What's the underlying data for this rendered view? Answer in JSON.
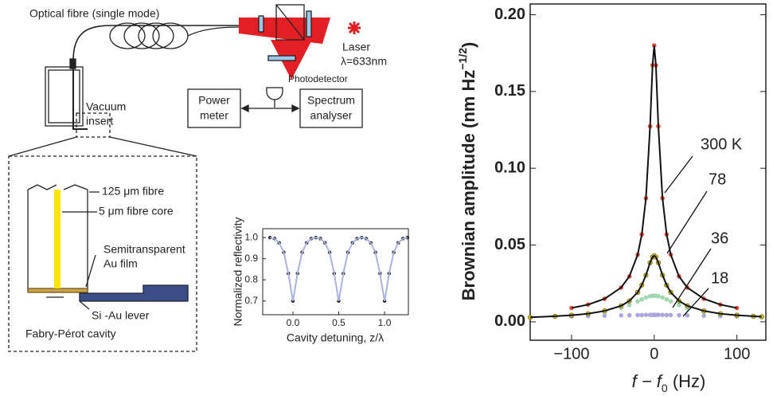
{
  "diagram": {
    "labels": [
      "Optical fibre (single mode)",
      "Laser",
      "λ=633nm",
      "Vacuum",
      "insert",
      "Photodetector",
      "Power",
      "meter",
      "Spectrum",
      "analyser",
      "125 μm fibre",
      "5 μm fibre core",
      "Semitransparent",
      "Au film",
      "Si -Au lever",
      "Fabry-Pérot cavity"
    ]
  },
  "chart_data": [
    {
      "type": "scatter",
      "xlabel": "Cavity detuning, z/λ",
      "ylabel": "Normalized reflectivity",
      "x": [
        -0.25,
        -0.2,
        -0.15,
        -0.1,
        -0.05,
        0,
        0.05,
        0.1,
        0.15,
        0.2,
        0.25,
        0.3,
        0.35,
        0.4,
        0.45,
        0.5,
        0.55,
        0.6,
        0.65,
        0.7,
        0.75,
        0.8,
        0.85,
        0.9,
        0.95,
        1,
        1.05,
        1.1,
        1.15,
        1.2,
        1.25
      ],
      "values": [
        1.0,
        0.995,
        0.975,
        0.93,
        0.83,
        0.7,
        0.83,
        0.93,
        0.975,
        0.995,
        1.0,
        0.995,
        0.975,
        0.93,
        0.83,
        0.7,
        0.83,
        0.93,
        0.975,
        0.995,
        1.0,
        0.995,
        0.975,
        0.93,
        0.83,
        0.7,
        0.83,
        0.93,
        0.975,
        0.995,
        1.0
      ],
      "color": "#1a1a1a",
      "line_color": "#aab2e0",
      "xlim": [
        -0.33,
        1.26
      ],
      "ylim": [
        0.635,
        1.042
      ],
      "xticks": [
        {
          "value": 0,
          "label": "0.0"
        },
        {
          "value": 0.5,
          "label": "0.5"
        },
        {
          "value": 1,
          "label": "1.0"
        }
      ],
      "yticks": [
        0.7,
        0.8,
        0.9,
        {
          "value": 1,
          "label": "1.0"
        }
      ]
    },
    {
      "type": "scatter",
      "xlabel": [
        "f − f",
        "0",
        " (Hz)"
      ],
      "ylabel": [
        "Brownian amplitude (nm Hz",
        "−1/2",
        ")"
      ],
      "x": [
        -150,
        -120,
        -100,
        -80,
        -60,
        -40,
        -30,
        -20,
        -15,
        -10,
        -5,
        -2,
        0,
        2,
        5,
        10,
        15,
        20,
        30,
        40,
        60,
        80,
        100,
        120,
        130
      ],
      "series": [
        {
          "name": "300 K",
          "color": "#e8503a",
          "line_color": "#111111",
          "values": [
            null,
            null,
            0.009,
            0.0112,
            0.015,
            0.0223,
            0.0296,
            0.0437,
            0.0569,
            0.0805,
            0.1273,
            0.1671,
            0.18,
            0.1671,
            0.1273,
            0.0805,
            0.0569,
            0.0437,
            0.0296,
            0.0223,
            0.015,
            0.0112,
            0.009,
            null,
            null
          ]
        },
        {
          "name": "78",
          "color": "#d4c21a",
          "line_color": "#111111",
          "values": [
            0.0029,
            0.0036,
            0.0043,
            0.0053,
            0.0071,
            0.0104,
            0.0136,
            0.0192,
            0.0239,
            0.0304,
            0.0385,
            0.0422,
            0.043,
            0.0422,
            0.0385,
            0.0304,
            0.0239,
            0.0192,
            0.0136,
            0.0104,
            0.0071,
            0.0053,
            0.0043,
            0.0036,
            0.0033
          ]
        },
        {
          "name": "36",
          "color": "#9fd8b0",
          "values": [
            0.0028,
            0.0035,
            0.0041,
            0.0051,
            0.0065,
            0.009,
            0.0109,
            0.0133,
            0.0146,
            0.0158,
            0.0167,
            0.017,
            0.017,
            0.017,
            0.0167,
            0.0158,
            0.0146,
            0.0133,
            0.0109,
            0.009,
            0.0065,
            0.0051,
            0.0041,
            0.0035,
            0.0032
          ]
        },
        {
          "name": "18",
          "color": "#a9a9e0",
          "values": [
            0.003,
            0.0033,
            0.0035,
            0.0037,
            0.004,
            0.0042,
            0.0043,
            0.0044,
            0.0044,
            0.0045,
            0.0045,
            0.0045,
            0.0045,
            0.0045,
            0.0045,
            0.0045,
            0.0044,
            0.0044,
            0.0043,
            0.0042,
            0.004,
            0.0037,
            0.0035,
            0.0033,
            0.0032
          ]
        }
      ],
      "xlim": [
        -150,
        135
      ],
      "ylim": [
        -0.012,
        0.207
      ],
      "xticks": [
        {
          "value": -100,
          "label": "−100"
        },
        0,
        100
      ],
      "yticks": [
        {
          "value": 0,
          "label": "0.00"
        },
        {
          "value": 0.05,
          "label": "0.05"
        },
        {
          "value": 0.1,
          "label": "0.10"
        },
        {
          "value": 0.15,
          "label": "0.15"
        },
        {
          "value": 0.2,
          "label": "0.20"
        }
      ]
    }
  ]
}
